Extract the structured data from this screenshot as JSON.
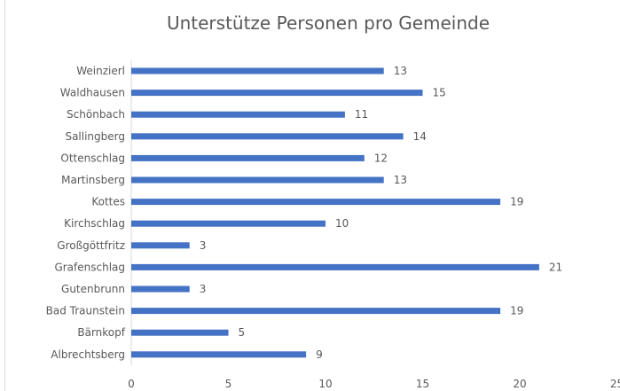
{
  "chart_data": {
    "type": "bar",
    "orientation": "horizontal",
    "title": "Unterstütze Personen pro Gemeinde",
    "categories": [
      "Weinzierl",
      "Waldhausen",
      "Schönbach",
      "Sallingberg",
      "Ottenschlag",
      "Martinsberg",
      "Kottes",
      "Kirchschlag",
      "Großgöttfritz",
      "Grafenschlag",
      "Gutenbrunn",
      "Bad Traunstein",
      "Bärnkopf",
      "Albrechtsberg"
    ],
    "values": [
      13,
      15,
      11,
      14,
      12,
      13,
      19,
      10,
      3,
      21,
      3,
      19,
      5,
      9
    ],
    "xlim": [
      0,
      25
    ],
    "xticks": [
      "0",
      "5",
      "10",
      "15",
      "20",
      "25"
    ],
    "data_labels": true,
    "grid": false,
    "legend": "none",
    "bar_color": "#4472C4"
  }
}
